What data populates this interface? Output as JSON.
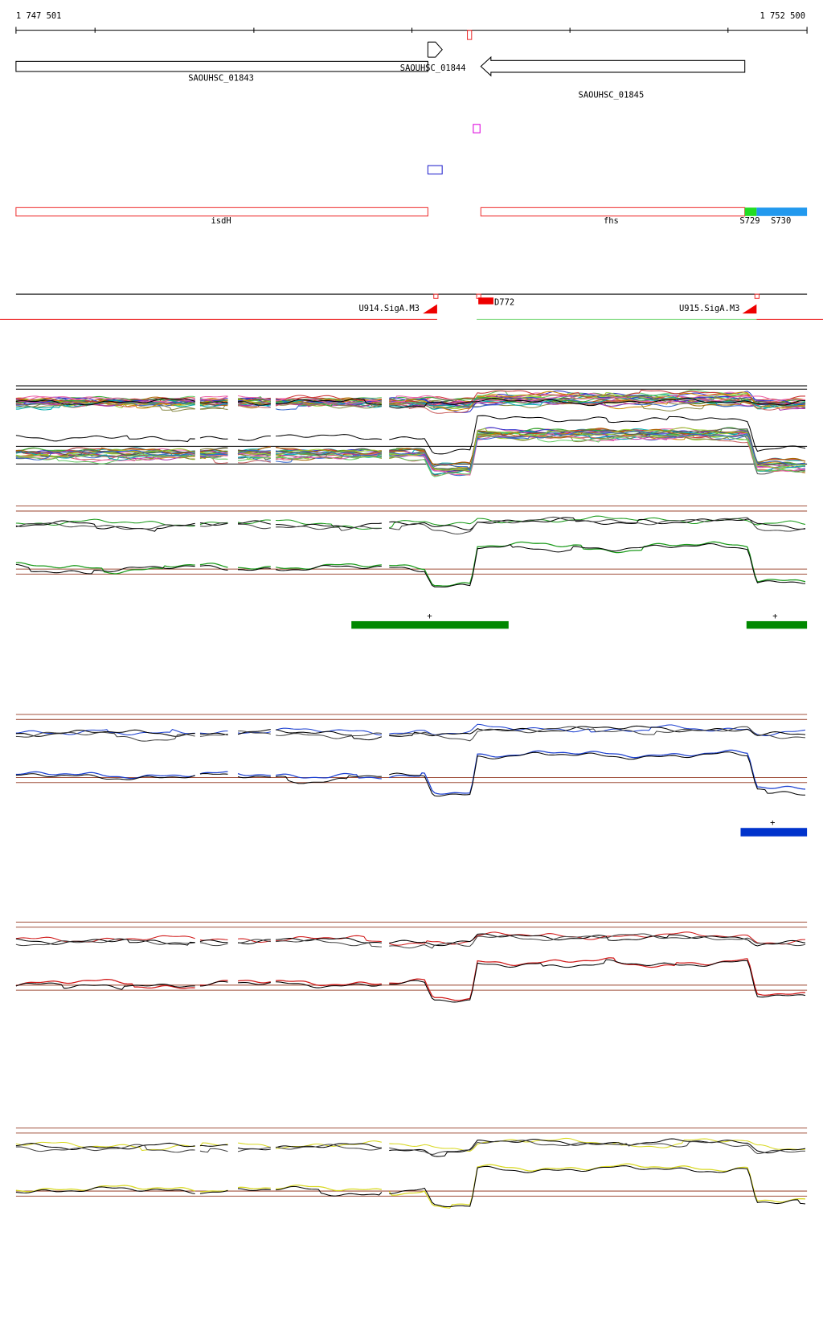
{
  "ruler": {
    "start": "1 747 501",
    "end": "1 752 500"
  },
  "genes": [
    {
      "label": "SAOUHSC_01843"
    },
    {
      "label": "SAOUHSC_01844"
    },
    {
      "label": "SAOUHSC_01845"
    }
  ],
  "annotations": [
    {
      "label": "isdH"
    },
    {
      "label": "fhs"
    },
    {
      "label": "S729"
    },
    {
      "label": "S730"
    }
  ],
  "features": [
    {
      "label": "U914.SigA.M3"
    },
    {
      "label": "D772"
    },
    {
      "label": "U915.SigA.M3"
    }
  ],
  "significance": [
    "+",
    "+",
    "+"
  ]
}
